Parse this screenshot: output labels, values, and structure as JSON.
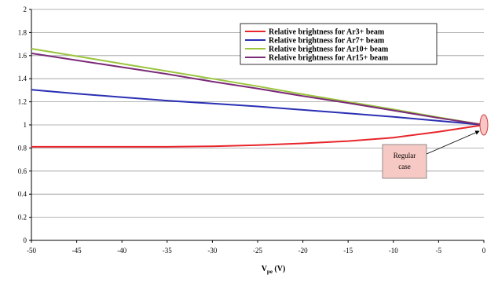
{
  "chart_data": {
    "type": "line",
    "xlabel_main": "V",
    "xlabel_sub": "pe",
    "xlabel_unit": " (V)",
    "xlim": [
      -50,
      0
    ],
    "ylim": [
      0,
      2
    ],
    "x_ticks": [
      -50,
      -45,
      -40,
      -35,
      -30,
      -25,
      -20,
      -15,
      -10,
      -5,
      0
    ],
    "y_ticks": [
      0,
      0.2,
      0.4,
      0.6,
      0.8,
      1,
      1.2,
      1.4,
      1.6,
      1.8,
      2
    ],
    "grid": "horizontal",
    "legend_position": "top-right",
    "series": [
      {
        "name": "Relative brightness for Ar3+ beam",
        "color": "#e8262b",
        "x": [
          -50,
          -45,
          -40,
          -35,
          -30,
          -25,
          -20,
          -15,
          -10,
          -5,
          0
        ],
        "y": [
          0.81,
          0.81,
          0.81,
          0.81,
          0.815,
          0.825,
          0.84,
          0.86,
          0.89,
          0.94,
          1.0
        ]
      },
      {
        "name": "Relative brightness for Ar7+ beam",
        "color": "#2a2fb3",
        "x": [
          -50,
          -45,
          -40,
          -35,
          -30,
          -25,
          -20,
          -15,
          -10,
          -5,
          0
        ],
        "y": [
          1.305,
          1.27,
          1.24,
          1.21,
          1.185,
          1.16,
          1.13,
          1.1,
          1.07,
          1.035,
          1.0
        ]
      },
      {
        "name": "Relative brightness for Ar10+ beam",
        "color": "#9bc53d",
        "x": [
          -50,
          -45,
          -40,
          -35,
          -30,
          -25,
          -20,
          -15,
          -10,
          -5,
          0
        ],
        "y": [
          1.66,
          1.595,
          1.53,
          1.465,
          1.4,
          1.335,
          1.265,
          1.2,
          1.135,
          1.065,
          1.0
        ]
      },
      {
        "name": "Relative brightness for Ar15+ beam",
        "color": "#7b2a78",
        "x": [
          -50,
          -45,
          -40,
          -35,
          -30,
          -25,
          -20,
          -15,
          -10,
          -5,
          0
        ],
        "y": [
          1.62,
          1.56,
          1.5,
          1.44,
          1.375,
          1.315,
          1.25,
          1.19,
          1.125,
          1.06,
          1.0
        ]
      }
    ],
    "annotations": [
      {
        "text_line1": "Regular",
        "text_line2": "case",
        "x": 0,
        "y": 1.0
      }
    ]
  }
}
